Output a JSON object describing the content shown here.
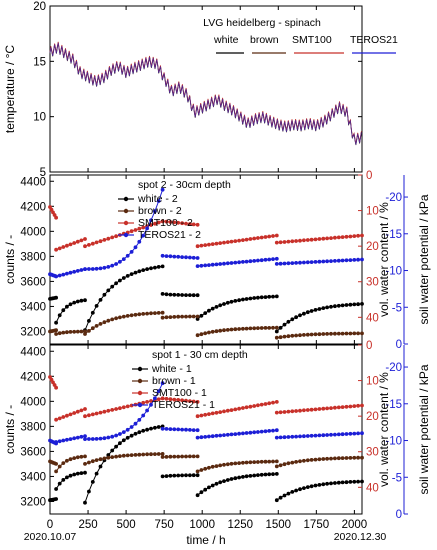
{
  "chart_data": [
    {
      "type": "line",
      "title": "LVG heidelberg - spinach",
      "ylabel": "temperature / °C",
      "ylim": [
        5,
        20
      ],
      "yticks": [
        5,
        10,
        15,
        20
      ],
      "xlim": [
        0,
        2050
      ],
      "legend_position": "top-right",
      "legend_labels": [
        "white",
        "brown",
        "SMT100",
        "TEROS21"
      ],
      "series_colors": [
        "#000000",
        "#5b2a10",
        "#c8312a",
        "#1d1fd6"
      ],
      "x": [
        0,
        50,
        100,
        150,
        200,
        250,
        300,
        350,
        400,
        450,
        500,
        550,
        600,
        650,
        700,
        750,
        800,
        850,
        900,
        950,
        1000,
        1050,
        1100,
        1150,
        1200,
        1250,
        1300,
        1350,
        1400,
        1450,
        1500,
        1550,
        1600,
        1650,
        1700,
        1750,
        1800,
        1850,
        1900,
        1950,
        2000,
        2050
      ],
      "series": [
        {
          "name": "white",
          "values": [
            15.8,
            16.3,
            15.7,
            15.2,
            14.0,
            13.6,
            13.2,
            13.5,
            14.2,
            14.6,
            14.0,
            14.4,
            14.7,
            15.0,
            14.8,
            13.5,
            12.3,
            12.7,
            12.0,
            10.4,
            10.8,
            11.2,
            11.6,
            11.0,
            10.6,
            10.0,
            9.4,
            9.8,
            10.0,
            9.6,
            9.3,
            9.1,
            9.3,
            9.2,
            9.4,
            9.2,
            9.6,
            10.2,
            10.9,
            10.4,
            7.9,
            8.2
          ]
        }
      ]
    },
    {
      "type": "line",
      "annotation": "spot 2 - 30cm depth",
      "xlim": [
        0,
        2050
      ],
      "ylabel": "counts / -",
      "ylim": [
        3100,
        4450
      ],
      "yticks": [
        3200,
        3400,
        3600,
        3800,
        4000,
        4200,
        4400
      ],
      "y2label": "vol. water content / %",
      "y2lim": [
        47.5,
        0
      ],
      "y2ticks": [
        0,
        10,
        20,
        30,
        40
      ],
      "y3label": "soil water potential / kPa",
      "y3lim": [
        0,
        -23
      ],
      "y3ticks": [
        0,
        -5,
        -10,
        -15,
        -20
      ],
      "legend_position": "top-left",
      "legend_labels": [
        "white - 2",
        "brown - 2",
        "SMT100 - 2",
        "TEROS21 - 2"
      ],
      "series_colors": [
        "#000000",
        "#5b2a10",
        "#c8312a",
        "#1d1fd6"
      ],
      "segments": [
        [
          0,
          40
        ],
        [
          40,
          230
        ],
        [
          230,
          740
        ],
        [
          740,
          970
        ],
        [
          970,
          1490
        ],
        [
          1490,
          2050
        ]
      ],
      "series": [
        {
          "name": "white - 2",
          "axis": "left",
          "unit": "counts",
          "segments": [
            [
              3460,
              3470
            ],
            [
              3270,
              3450
            ],
            [
              3210,
              3720
            ],
            [
              3500,
              3490
            ],
            [
              3300,
              3480
            ],
            [
              3200,
              3420
            ]
          ]
        },
        {
          "name": "brown - 2",
          "axis": "left",
          "unit": "counts",
          "segments": [
            [
              3200,
              3210
            ],
            [
              3180,
              3200
            ],
            [
              3180,
              3350
            ],
            [
              3310,
              3320
            ],
            [
              3170,
              3230
            ],
            [
              3150,
              3185
            ]
          ]
        },
        {
          "name": "SMT100 - 2",
          "axis": "right",
          "unit": "%",
          "segments": [
            [
              9,
              12
            ],
            [
              21,
              18
            ],
            [
              20,
              13
            ],
            [
              13,
              14
            ],
            [
              20,
              17
            ],
            [
              19,
              17
            ]
          ]
        },
        {
          "name": "TEROS21 - 2",
          "axis": "potential",
          "unit": "kPa",
          "segments": [
            [
              -9.5,
              -9.2
            ],
            [
              -9.2,
              -10.2
            ],
            [
              -10.2,
              -21.0
            ],
            [
              -12.0,
              -11.7
            ],
            [
              -10.6,
              -11.6
            ],
            [
              -10.9,
              -11.5
            ]
          ]
        }
      ]
    },
    {
      "type": "line",
      "annotation": "spot 1 - 30 cm depth",
      "xlabel": "time / h",
      "xlim": [
        0,
        2050
      ],
      "xticks": [
        0,
        250,
        500,
        750,
        1000,
        1250,
        1500,
        1750,
        2000
      ],
      "date_labels": [
        "2020.10.07",
        "2020.12.30"
      ],
      "ylabel": "counts / -",
      "ylim": [
        3100,
        4450
      ],
      "yticks": [
        3200,
        3400,
        3600,
        3800,
        4000,
        4200,
        4400
      ],
      "y2label": "vol. water content / %",
      "y2lim": [
        47.5,
        0
      ],
      "y2ticks": [
        0,
        10,
        20,
        30,
        40
      ],
      "y3label": "soil water potential / kPa",
      "y3lim": [
        0,
        -23
      ],
      "y3ticks": [
        0,
        -5,
        -10,
        -15,
        -20
      ],
      "legend_position": "top-center",
      "legend_labels": [
        "white - 1",
        "brown - 1",
        "SMT100 - 1",
        "TEROS21 - 1"
      ],
      "series_colors": [
        "#000000",
        "#5b2a10",
        "#c8312a",
        "#1d1fd6"
      ],
      "segments": [
        [
          0,
          40
        ],
        [
          40,
          230
        ],
        [
          230,
          740
        ],
        [
          740,
          970
        ],
        [
          970,
          1490
        ],
        [
          1490,
          2050
        ]
      ],
      "series": [
        {
          "name": "white - 1",
          "axis": "left",
          "unit": "counts",
          "segments": [
            [
              3210,
              3220
            ],
            [
              3300,
              3430
            ],
            [
              3190,
              3800
            ],
            [
              3400,
              3410
            ],
            [
              3250,
              3420
            ],
            [
              3210,
              3360
            ]
          ]
        },
        {
          "name": "brown - 1",
          "axis": "left",
          "unit": "counts",
          "segments": [
            [
              3520,
              3500
            ],
            [
              3440,
              3560
            ],
            [
              3500,
              3580
            ],
            [
              3555,
              3560
            ],
            [
              3440,
              3520
            ],
            [
              3480,
              3550
            ]
          ]
        },
        {
          "name": "SMT100 - 1",
          "axis": "right",
          "unit": "%",
          "segments": [
            [
              9,
              12
            ],
            [
              21,
              18
            ],
            [
              20,
              15
            ],
            [
              15,
              16
            ],
            [
              20,
              16
            ],
            [
              19,
              17
            ]
          ]
        },
        {
          "name": "TEROS21 - 1",
          "axis": "potential",
          "unit": "kPa",
          "segments": [
            [
              -10.0,
              -9.6
            ],
            [
              -9.8,
              -10.6
            ],
            [
              -10.2,
              -17.8
            ],
            [
              -11.6,
              -11.4
            ],
            [
              -10.4,
              -11.4
            ],
            [
              -10.4,
              -11.0
            ]
          ]
        }
      ]
    }
  ]
}
